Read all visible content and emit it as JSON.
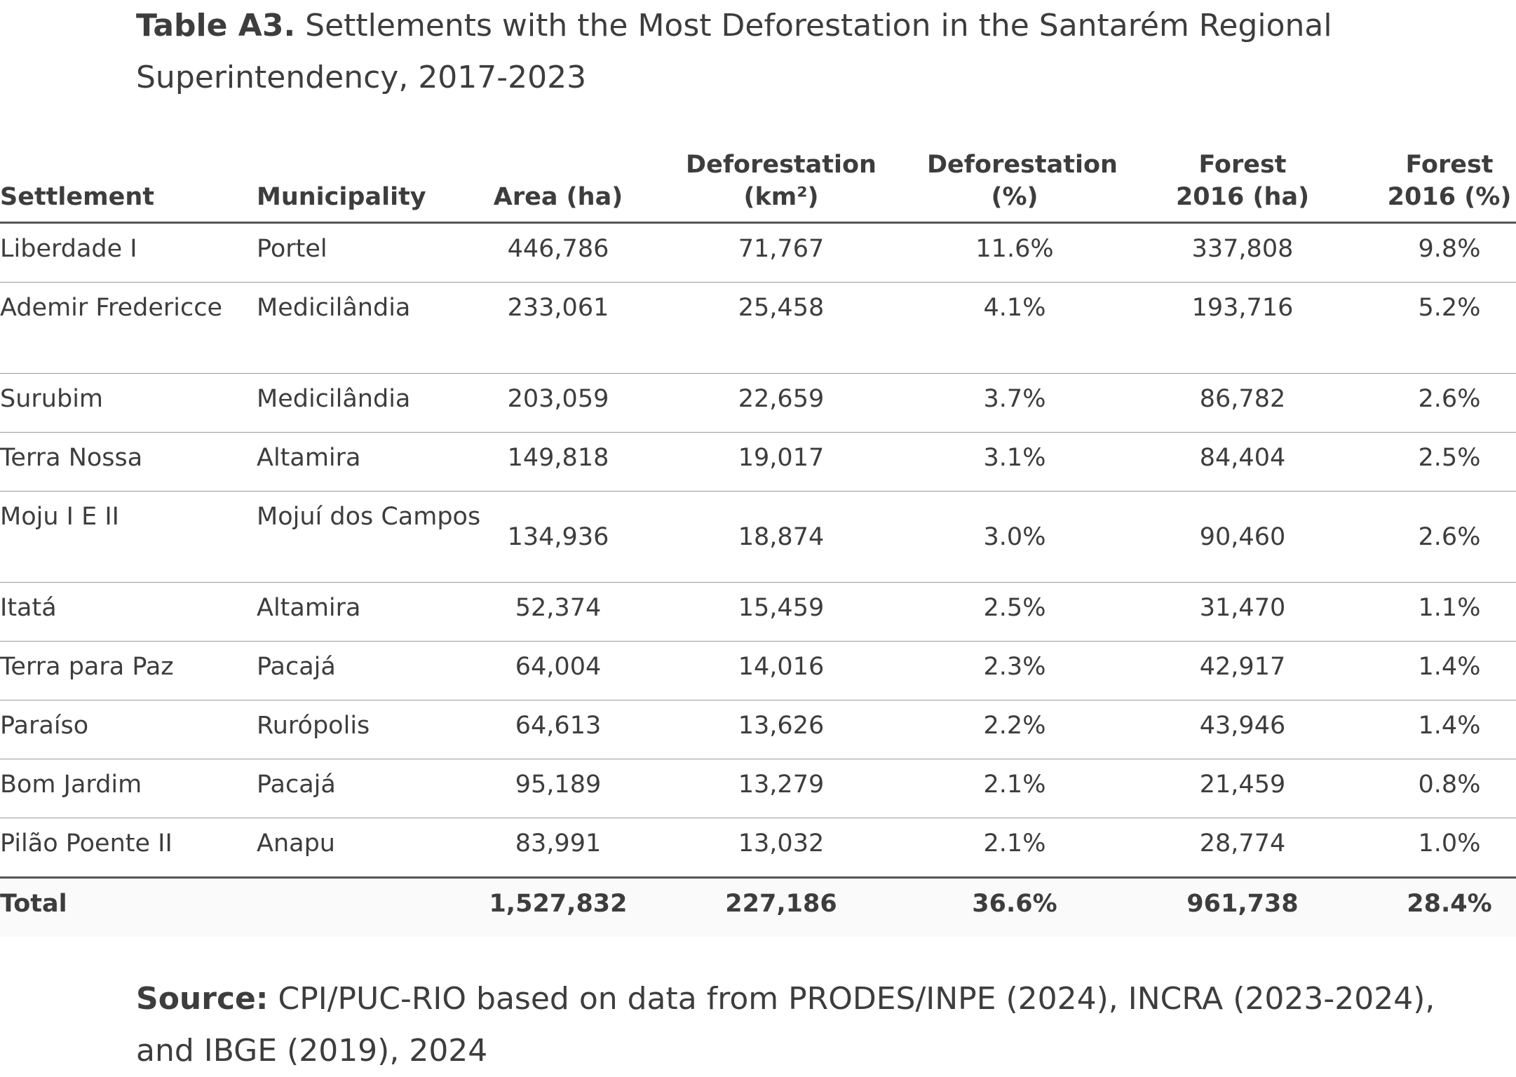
{
  "caption": {
    "label": "Table A3.",
    "text": "Settlements with the Most Deforestation in the Santarém Regional Superintendency, 2017-2023"
  },
  "table": {
    "headers": [
      "Settlement",
      "Municipality",
      "Area (ha)",
      "Deforestation\n(km²)",
      "Deforestation\n(%)",
      "Forest\n2016 (ha)",
      "Forest\n2016 (%)"
    ],
    "rows": [
      [
        "Liberdade I",
        "Portel",
        "446,786",
        "71,767",
        "11.6%",
        "337,808",
        "9.8%"
      ],
      [
        "Ademir Fredericce",
        "Medicilândia",
        "233,061",
        "25,458",
        "4.1%",
        "193,716",
        "5.2%"
      ],
      [
        "Surubim",
        "Medicilândia",
        "203,059",
        "22,659",
        "3.7%",
        "86,782",
        "2.6%"
      ],
      [
        "Terra Nossa",
        "Altamira",
        "149,818",
        "19,017",
        "3.1%",
        "84,404",
        "2.5%"
      ],
      [
        "Moju I E II",
        "Mojuí dos Campos",
        "134,936",
        "18,874",
        "3.0%",
        "90,460",
        "2.6%"
      ],
      [
        "Itatá",
        "Altamira",
        "52,374",
        "15,459",
        "2.5%",
        "31,470",
        "1.1%"
      ],
      [
        "Terra para Paz",
        "Pacajá",
        "64,004",
        "14,016",
        "2.3%",
        "42,917",
        "1.4%"
      ],
      [
        "Paraíso",
        "Rurópolis",
        "64,613",
        "13,626",
        "2.2%",
        "43,946",
        "1.4%"
      ],
      [
        "Bom Jardim",
        "Pacajá",
        "95,189",
        "13,279",
        "2.1%",
        "21,459",
        "0.8%"
      ],
      [
        "Pilão Poente II",
        "Anapu",
        "83,991",
        "13,032",
        "2.1%",
        "28,774",
        "1.0%"
      ]
    ],
    "total": [
      "Total",
      "",
      "1,527,832",
      "227,186",
      "36.6%",
      "961,738",
      "28.4%"
    ]
  },
  "source": {
    "label": "Source:",
    "text": "CPI/PUC-RIO based on data from PRODES/INPE (2024), INCRA (2023-2024), and IBGE (2019), 2024"
  }
}
